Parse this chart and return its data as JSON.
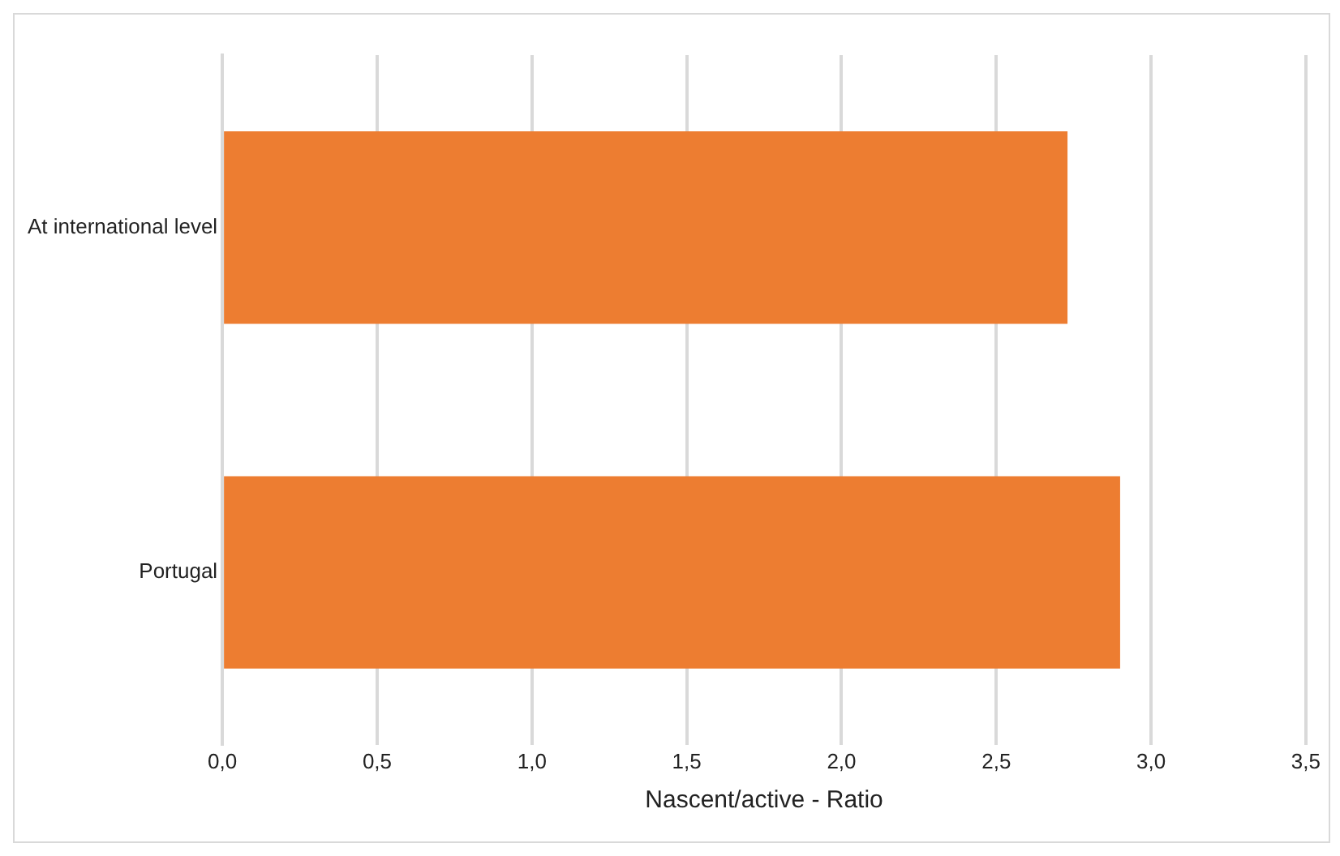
{
  "chart_data": {
    "type": "bar",
    "orientation": "horizontal",
    "categories": [
      "At international level",
      "Portugal"
    ],
    "values": [
      2.73,
      2.9
    ],
    "color": "#ed7d31",
    "xlabel": "Nascent/active - Ratio",
    "xlim": [
      0,
      3.5
    ],
    "xticks": [
      {
        "value": 0,
        "label": "0,0"
      },
      {
        "value": 0.5,
        "label": "0,5"
      },
      {
        "value": 1,
        "label": "1,0"
      },
      {
        "value": 1.5,
        "label": "1,5"
      },
      {
        "value": 2,
        "label": "2,0"
      },
      {
        "value": 2.5,
        "label": "2,5"
      },
      {
        "value": 3,
        "label": "3,0"
      },
      {
        "value": 3.5,
        "label": "3,5"
      }
    ],
    "grid": "x",
    "legend": false
  }
}
